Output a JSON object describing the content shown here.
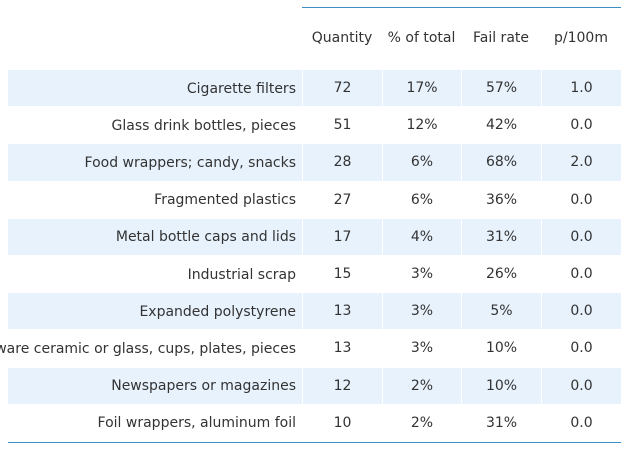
{
  "table": {
    "headers": [
      "Quantity",
      "% of total",
      "Fail rate",
      "p/100m"
    ],
    "rows": [
      [
        "Cigarette filters",
        "72",
        "17%",
        "57%",
        "1.0"
      ],
      [
        "Glass drink bottles, pieces",
        "51",
        "12%",
        "42%",
        "0.0"
      ],
      [
        "Food wrappers; candy, snacks",
        "28",
        "6%",
        "68%",
        "2.0"
      ],
      [
        "Fragmented plastics",
        "27",
        "6%",
        "36%",
        "0.0"
      ],
      [
        "Metal bottle caps and lids",
        "17",
        "4%",
        "31%",
        "0.0"
      ],
      [
        "Industrial scrap",
        "15",
        "3%",
        "26%",
        "0.0"
      ],
      [
        "Expanded polystyrene",
        "13",
        "3%",
        "5%",
        "0.0"
      ],
      [
        "ware ceramic or glass, cups, plates, pieces",
        "13",
        "3%",
        "10%",
        "0.0"
      ],
      [
        "Newspapers or magazines",
        "12",
        "2%",
        "10%",
        "0.0"
      ],
      [
        "Foil wrappers, aluminum foil",
        "10",
        "2%",
        "31%",
        "0.0"
      ]
    ]
  }
}
